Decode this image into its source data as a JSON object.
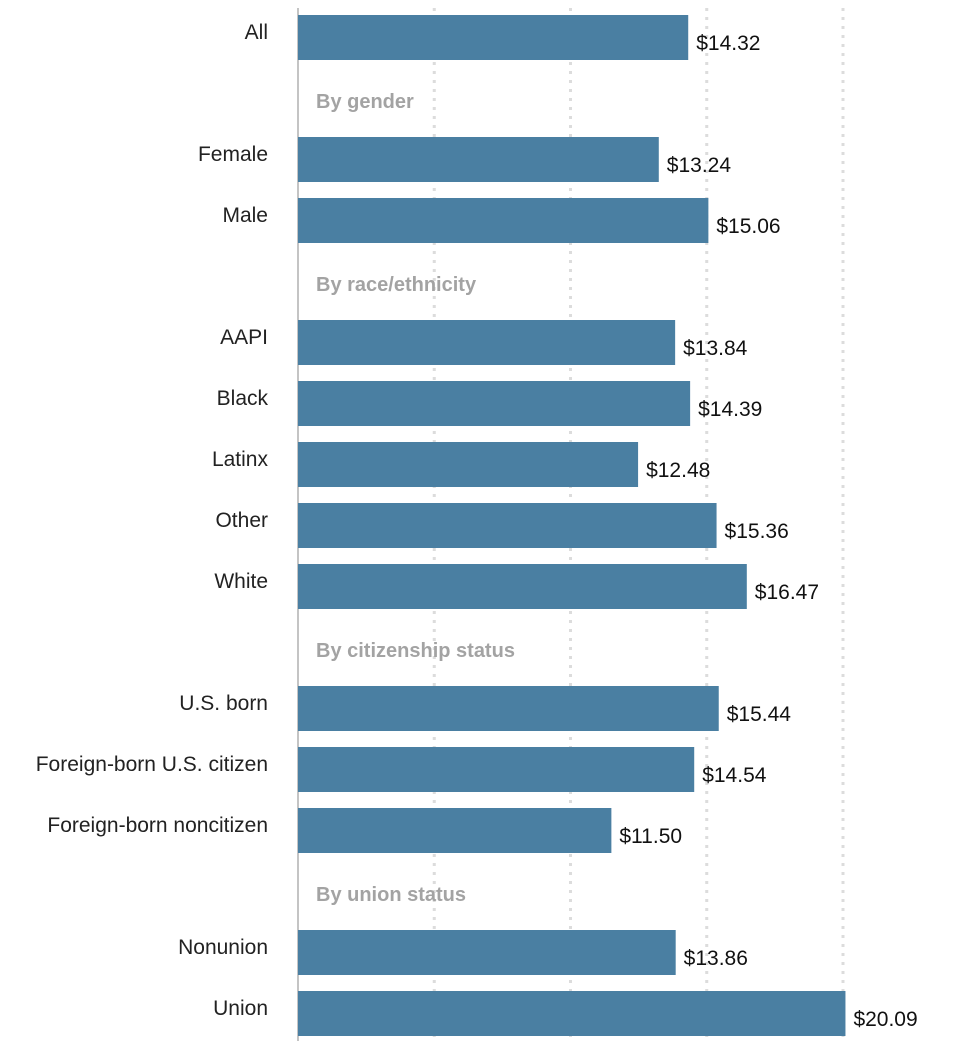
{
  "chart_data": {
    "type": "bar",
    "orientation": "horizontal",
    "bar_color": "#4a7fa2",
    "grid": true,
    "xlim": [
      0,
      20
    ],
    "rows": [
      {
        "kind": "bar",
        "category": "All",
        "value": 14.32,
        "label": "$14.32"
      },
      {
        "kind": "group",
        "label": "By gender"
      },
      {
        "kind": "bar",
        "category": "Female",
        "value": 13.24,
        "label": "$13.24"
      },
      {
        "kind": "bar",
        "category": "Male",
        "value": 15.06,
        "label": "$15.06"
      },
      {
        "kind": "group",
        "label": "By race/ethnicity"
      },
      {
        "kind": "bar",
        "category": "AAPI",
        "value": 13.84,
        "label": "$13.84"
      },
      {
        "kind": "bar",
        "category": "Black",
        "value": 14.39,
        "label": "$14.39"
      },
      {
        "kind": "bar",
        "category": "Latinx",
        "value": 12.48,
        "label": "$12.48"
      },
      {
        "kind": "bar",
        "category": "Other",
        "value": 15.36,
        "label": "$15.36"
      },
      {
        "kind": "bar",
        "category": "White",
        "value": 16.47,
        "label": "$16.47"
      },
      {
        "kind": "group",
        "label": "By citizenship status"
      },
      {
        "kind": "bar",
        "category": "U.S. born",
        "value": 15.44,
        "label": "$15.44"
      },
      {
        "kind": "bar",
        "category": "Foreign-born U.S. citizen",
        "value": 14.54,
        "label": "$14.54"
      },
      {
        "kind": "bar",
        "category": "Foreign-born noncitizen",
        "value": 11.5,
        "label": "$11.50"
      },
      {
        "kind": "group",
        "label": "By union status"
      },
      {
        "kind": "bar",
        "category": "Nonunion",
        "value": 13.86,
        "label": "$13.86"
      },
      {
        "kind": "bar",
        "category": "Union",
        "value": 20.09,
        "label": "$20.09"
      }
    ]
  }
}
